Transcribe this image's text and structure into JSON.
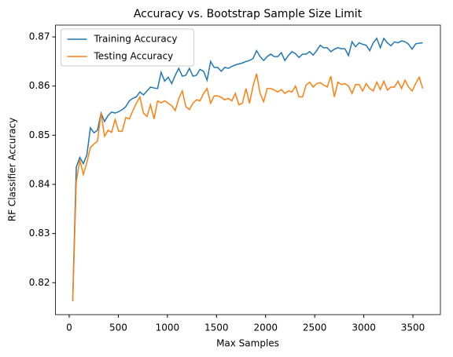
{
  "chart_data": {
    "type": "line",
    "title": "Accuracy vs. Bootstrap Sample Size Limit",
    "xlabel": "Max Samples",
    "ylabel": "RF Classifier Accuracy",
    "x": [
      36,
      72,
      108,
      144,
      180,
      216,
      252,
      288,
      324,
      360,
      396,
      432,
      468,
      504,
      540,
      576,
      612,
      648,
      684,
      720,
      756,
      792,
      828,
      864,
      900,
      936,
      972,
      1008,
      1044,
      1080,
      1116,
      1152,
      1188,
      1224,
      1260,
      1296,
      1332,
      1368,
      1404,
      1440,
      1476,
      1512,
      1548,
      1584,
      1620,
      1656,
      1692,
      1728,
      1764,
      1800,
      1836,
      1872,
      1908,
      1944,
      1980,
      2016,
      2052,
      2088,
      2124,
      2160,
      2196,
      2232,
      2268,
      2304,
      2340,
      2376,
      2412,
      2448,
      2484,
      2520,
      2556,
      2592,
      2628,
      2664,
      2700,
      2736,
      2772,
      2808,
      2844,
      2880,
      2916,
      2952,
      2988,
      3024,
      3060,
      3096,
      3132,
      3168,
      3204,
      3240,
      3276,
      3312,
      3348,
      3384,
      3420,
      3456,
      3492,
      3528,
      3564,
      3600
    ],
    "series": [
      {
        "name": "Training Accuracy",
        "color": "#1f77b4",
        "values": [
          0.8165,
          0.8435,
          0.8455,
          0.8442,
          0.846,
          0.8515,
          0.8505,
          0.851,
          0.8545,
          0.8528,
          0.854,
          0.8547,
          0.8545,
          0.8548,
          0.8552,
          0.8558,
          0.857,
          0.8575,
          0.8578,
          0.8588,
          0.8582,
          0.859,
          0.8598,
          0.8596,
          0.8595,
          0.8628,
          0.861,
          0.8618,
          0.8605,
          0.8622,
          0.8636,
          0.862,
          0.8622,
          0.8636,
          0.862,
          0.8622,
          0.8634,
          0.863,
          0.8612,
          0.865,
          0.8638,
          0.8638,
          0.863,
          0.8638,
          0.8636,
          0.864,
          0.8643,
          0.8645,
          0.8647,
          0.865,
          0.8652,
          0.8656,
          0.8672,
          0.866,
          0.8652,
          0.866,
          0.8665,
          0.866,
          0.866,
          0.8668,
          0.8652,
          0.8662,
          0.867,
          0.8666,
          0.8658,
          0.8665,
          0.8665,
          0.867,
          0.8663,
          0.8672,
          0.8683,
          0.8678,
          0.8678,
          0.867,
          0.8675,
          0.8678,
          0.8676,
          0.8676,
          0.8662,
          0.869,
          0.868,
          0.8688,
          0.8685,
          0.8683,
          0.8672,
          0.8688,
          0.8697,
          0.8678,
          0.8697,
          0.8688,
          0.8682,
          0.869,
          0.8688,
          0.8692,
          0.869,
          0.8685,
          0.8675,
          0.8686,
          0.8687,
          0.8688
        ]
      },
      {
        "name": "Testing Accuracy",
        "color": "#ff7f0e",
        "values": [
          0.8162,
          0.8405,
          0.845,
          0.842,
          0.8445,
          0.8475,
          0.8482,
          0.8488,
          0.8545,
          0.8498,
          0.851,
          0.8506,
          0.8532,
          0.8508,
          0.8508,
          0.8536,
          0.8533,
          0.855,
          0.8565,
          0.8578,
          0.8545,
          0.8538,
          0.8562,
          0.8533,
          0.857,
          0.8566,
          0.857,
          0.8565,
          0.856,
          0.855,
          0.8575,
          0.859,
          0.8558,
          0.8552,
          0.8565,
          0.8572,
          0.857,
          0.8585,
          0.8595,
          0.8565,
          0.858,
          0.858,
          0.8577,
          0.8572,
          0.8575,
          0.857,
          0.8585,
          0.8562,
          0.8565,
          0.8595,
          0.8565,
          0.86,
          0.8625,
          0.8585,
          0.8568,
          0.8595,
          0.8595,
          0.8592,
          0.8588,
          0.8593,
          0.8585,
          0.859,
          0.8588,
          0.86,
          0.8578,
          0.8578,
          0.8602,
          0.8608,
          0.8598,
          0.8605,
          0.8607,
          0.8602,
          0.8598,
          0.862,
          0.8578,
          0.8608,
          0.8603,
          0.8605,
          0.86,
          0.8585,
          0.8603,
          0.8603,
          0.859,
          0.8605,
          0.8595,
          0.859,
          0.8608,
          0.8593,
          0.861,
          0.8592,
          0.8598,
          0.8598,
          0.861,
          0.8595,
          0.8612,
          0.8598,
          0.859,
          0.8605,
          0.8618,
          0.8595
        ]
      }
    ],
    "xlim": [
      -140,
      3780
    ],
    "xticks": [
      0,
      500,
      1000,
      1500,
      2000,
      2500,
      3000,
      3500
    ],
    "ylim": [
      0.8135,
      0.8724
    ],
    "yticks": [
      0.82,
      0.83,
      0.84,
      0.85,
      0.86,
      0.87
    ],
    "legend": "upper left"
  }
}
